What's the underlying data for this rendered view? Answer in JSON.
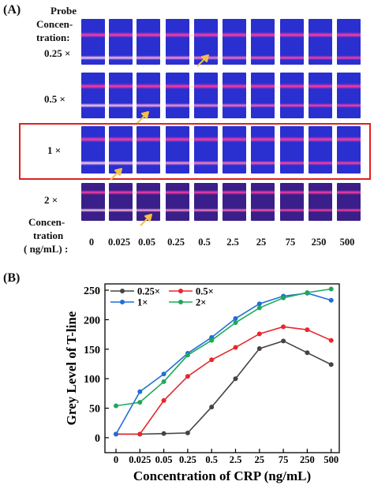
{
  "panel_a": {
    "label": "(A)",
    "probe_header": [
      "Probe",
      "Concen-",
      "tration:"
    ],
    "rows": [
      {
        "label": "0.25 ×",
        "highlighted": false,
        "c_band": 0.35,
        "t_band": 0.85
      },
      {
        "label": "0.5 ×",
        "highlighted": false,
        "c_band": 0.3,
        "t_band": 0.72
      },
      {
        "label": "1 ×",
        "highlighted": true,
        "c_band": 0.28,
        "t_band": 0.78
      },
      {
        "label": "2 ×",
        "highlighted": false,
        "c_band": 0.25,
        "t_band": 0.72
      }
    ],
    "conc_header": [
      "Concen-",
      "tration",
      "( ng/mL) :"
    ],
    "concentrations": [
      "0",
      "0.025",
      "0.05",
      "0.25",
      "0.5",
      "2.5",
      "25",
      "75",
      "250",
      "500"
    ],
    "colors": {
      "strip": "#2a2fd0",
      "band": "#ff3ba0",
      "box": "#e02020",
      "arrow": "#f2c04a"
    }
  },
  "chart_data": {
    "label": "(B)",
    "type": "line",
    "title": "",
    "xlabel": "Concentration of CRP (ng/mL)",
    "ylabel": "Grey Level of T-line",
    "categories": [
      "0",
      "0.025",
      "0.05",
      "0.25",
      "0.5",
      "2.5",
      "25",
      "75",
      "250",
      "500"
    ],
    "ylim": [
      0,
      250
    ],
    "yticks": [
      0,
      50,
      100,
      150,
      200,
      250
    ],
    "legend_position": "top-left",
    "series": [
      {
        "name": "0.25×",
        "color": "#444444",
        "values": [
          6,
          6,
          7,
          8,
          52,
          100,
          151,
          164,
          144,
          124
        ]
      },
      {
        "name": "0.5×",
        "color": "#e8262a",
        "values": [
          6,
          6,
          63,
          104,
          132,
          153,
          176,
          188,
          183,
          165
        ]
      },
      {
        "name": "1×",
        "color": "#1f6fd6",
        "values": [
          6,
          78,
          108,
          143,
          170,
          202,
          227,
          240,
          245,
          233
        ]
      },
      {
        "name": "2×",
        "color": "#1ea85a",
        "values": [
          54,
          60,
          95,
          140,
          165,
          195,
          220,
          237,
          246,
          252
        ]
      }
    ]
  }
}
